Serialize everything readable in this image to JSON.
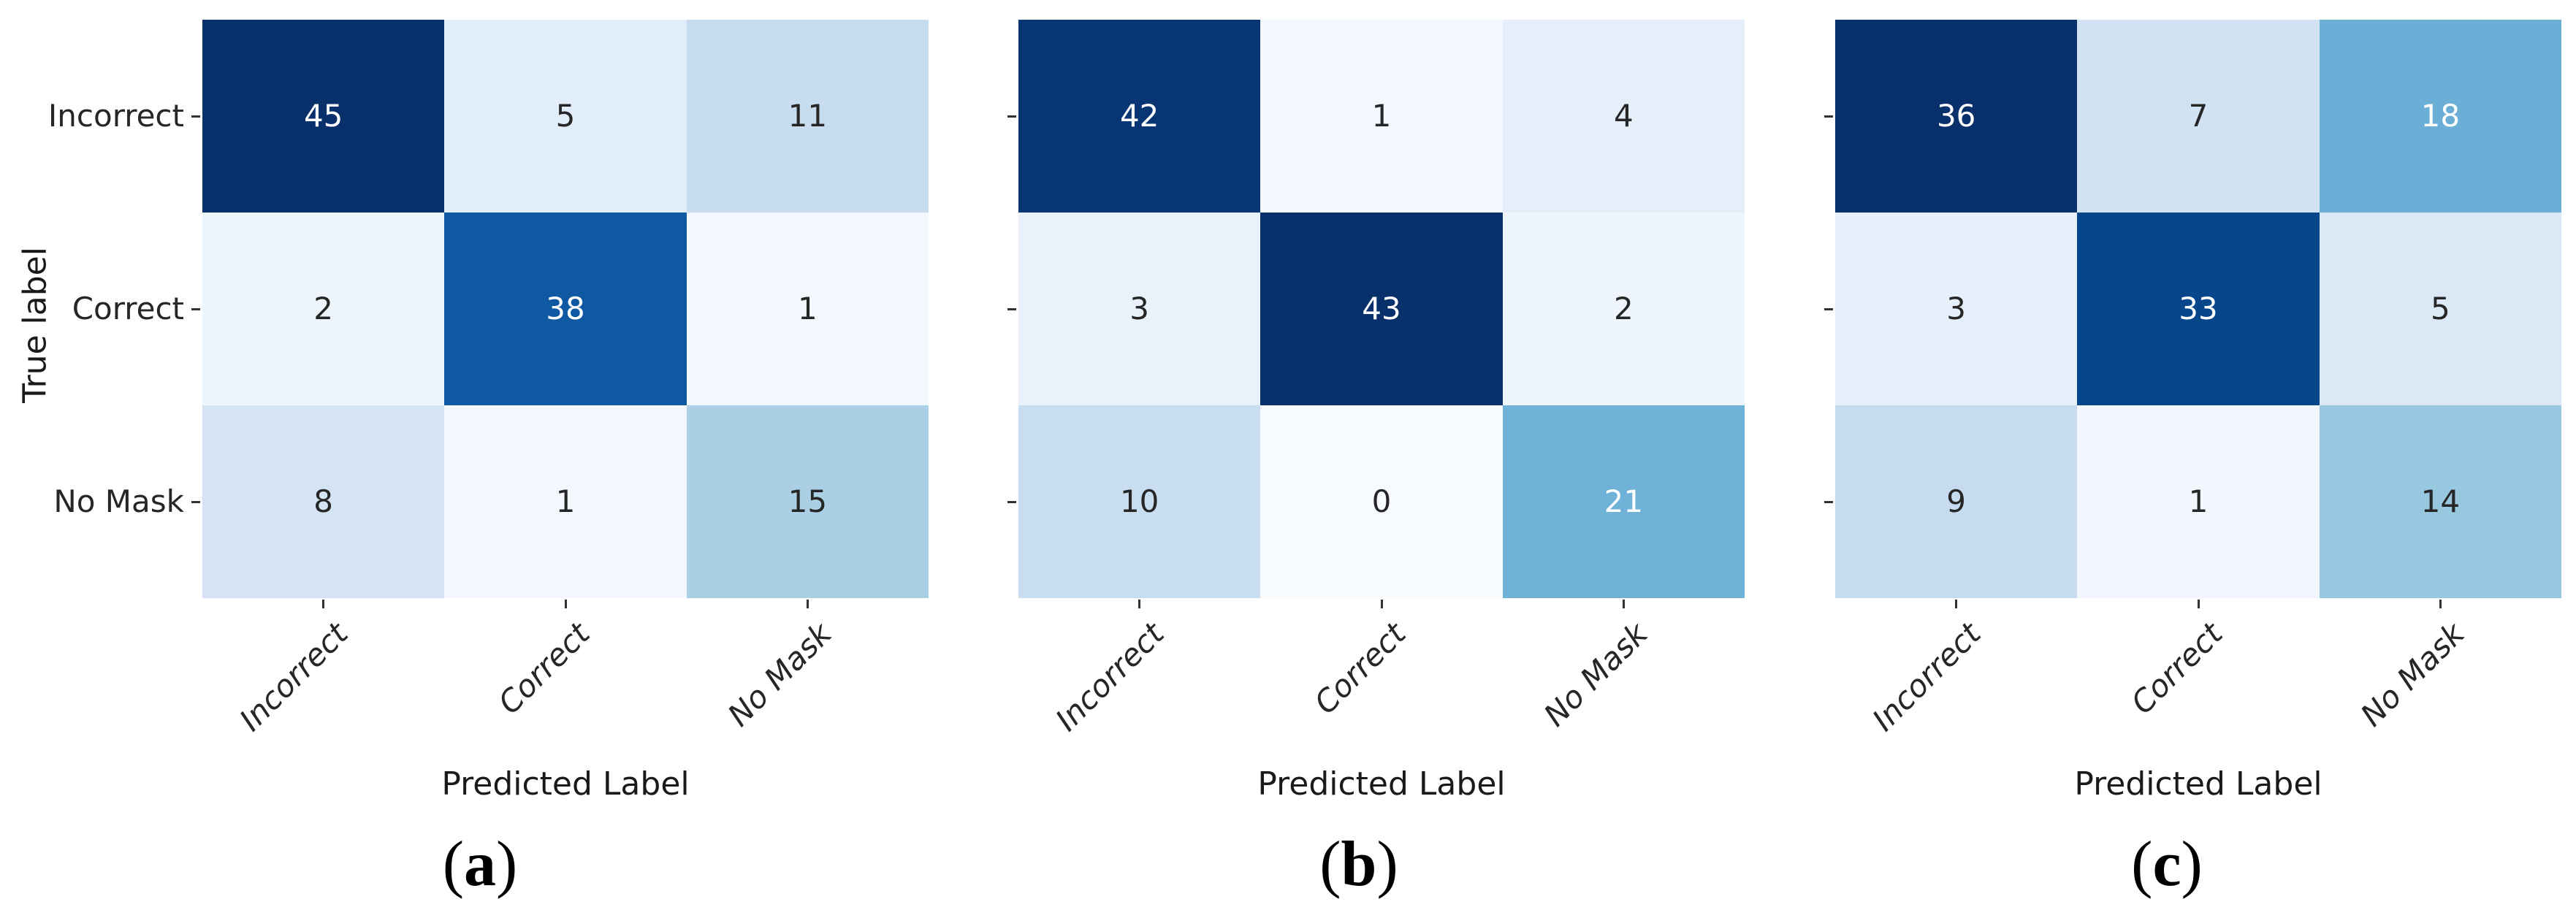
{
  "figure": {
    "background": "#ffffff",
    "tick_color": "#333333",
    "text_color": "#262626",
    "caption_row": [
      "(a)",
      "(b)",
      "(c)"
    ]
  },
  "chart_data": [
    {
      "type": "heatmap",
      "panel": "a",
      "caption": {
        "open": "(",
        "letter": "a",
        "close": ")"
      },
      "xlabel": "Predicted Label",
      "ylabel": "True label",
      "x_categories": [
        "Incorrect",
        "Correct",
        "No Mask"
      ],
      "y_categories": [
        "Incorrect",
        "Correct",
        "No Mask"
      ],
      "show_y_ticklabels": true,
      "values": [
        [
          45,
          5,
          11
        ],
        [
          2,
          38,
          1
        ],
        [
          8,
          1,
          15
        ]
      ],
      "colormap": "Blues",
      "vmin": 0,
      "vmax": 45,
      "cell_colors": [
        [
          "#08306b",
          "#e1edf8",
          "#c7dcef"
        ],
        [
          "#eef5fc",
          "#0e59a2",
          "#f3f8fe"
        ],
        [
          "#d4e4f4",
          "#f3f8fe",
          "#abd0e6"
        ]
      ],
      "text_colors": [
        [
          "#ffffff",
          "#262626",
          "#262626"
        ],
        [
          "#262626",
          "#ffffff",
          "#262626"
        ],
        [
          "#262626",
          "#262626",
          "#262626"
        ]
      ]
    },
    {
      "type": "heatmap",
      "panel": "b",
      "caption": {
        "open": "(",
        "letter": "b",
        "close": ")"
      },
      "xlabel": "Predicted Label",
      "ylabel": "",
      "x_categories": [
        "Incorrect",
        "Correct",
        "No Mask"
      ],
      "y_categories": [
        "Incorrect",
        "Correct",
        "No Mask"
      ],
      "show_y_ticklabels": false,
      "values": [
        [
          42,
          1,
          4
        ],
        [
          3,
          43,
          2
        ],
        [
          10,
          0,
          21
        ]
      ],
      "colormap": "Blues",
      "vmin": 0,
      "vmax": 43,
      "cell_colors": [
        [
          "#083674",
          "#f2f8fe",
          "#e4eff9"
        ],
        [
          "#e9f2fb",
          "#08306b",
          "#eef5fc"
        ],
        [
          "#c9ddf0",
          "#f7fbff",
          "#70b1d7"
        ]
      ],
      "text_colors": [
        [
          "#ffffff",
          "#262626",
          "#262626"
        ],
        [
          "#262626",
          "#ffffff",
          "#262626"
        ],
        [
          "#262626",
          "#262626",
          "#ffffff"
        ]
      ]
    },
    {
      "type": "heatmap",
      "panel": "c",
      "caption": {
        "open": "(",
        "letter": "c",
        "close": ")"
      },
      "xlabel": "Predicted Label",
      "ylabel": "",
      "x_categories": [
        "Incorrect",
        "Correct",
        "No Mask"
      ],
      "y_categories": [
        "Incorrect",
        "Correct",
        "No Mask"
      ],
      "show_y_ticklabels": false,
      "values": [
        [
          36,
          7,
          18
        ],
        [
          3,
          33,
          5
        ],
        [
          9,
          1,
          14
        ]
      ],
      "colormap": "Blues",
      "vmin": 0,
      "vmax": 36,
      "cell_colors": [
        [
          "#08306b",
          "#d1e2f3",
          "#6baed6"
        ],
        [
          "#e6f0fa",
          "#08468c",
          "#dbe9f6"
        ],
        [
          "#c6dbef",
          "#f1f7fd",
          "#98c7e0"
        ]
      ],
      "text_colors": [
        [
          "#ffffff",
          "#262626",
          "#ffffff"
        ],
        [
          "#262626",
          "#ffffff",
          "#262626"
        ],
        [
          "#262626",
          "#262626",
          "#262626"
        ]
      ]
    }
  ]
}
